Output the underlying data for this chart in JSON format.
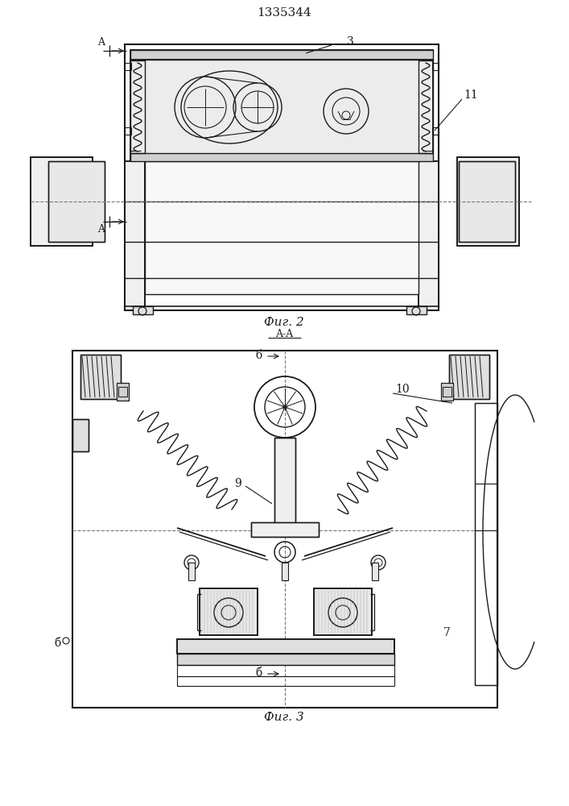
{
  "title": "1335344",
  "fig2_label": "Фиг. 2",
  "fig3_label": "Фиг. 3",
  "aa_label": "A-A",
  "bg_color": "#ffffff",
  "lc": "#1a1a1a",
  "label3": "3",
  "label11": "11",
  "label6b": "б",
  "label7": "7",
  "label9": "9",
  "label10": "10",
  "labelA": "A"
}
